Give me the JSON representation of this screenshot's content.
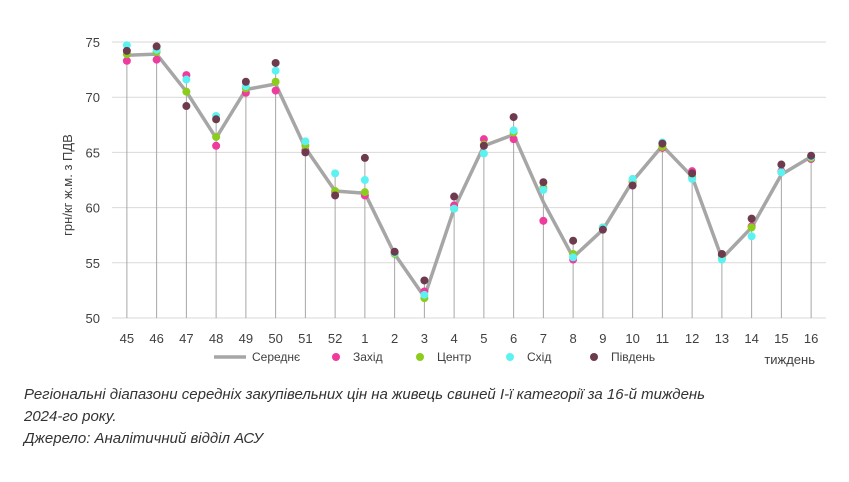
{
  "chart_data": {
    "type": "line",
    "title": "",
    "xlabel": "тиждень",
    "ylabel": "грн/кг ж.м. з ПДВ",
    "ylim": [
      50,
      75
    ],
    "yticks": [
      50,
      55,
      60,
      65,
      70,
      75
    ],
    "grid": true,
    "legend": "bottom",
    "categories": [
      "45",
      "46",
      "47",
      "48",
      "49",
      "50",
      "51",
      "52",
      "1",
      "2",
      "3",
      "4",
      "5",
      "6",
      "7",
      "8",
      "9",
      "10",
      "11",
      "12",
      "13",
      "14",
      "15",
      "16"
    ],
    "series": [
      {
        "name": "Середнє",
        "kind": "line",
        "color": "#a6a6a6",
        "values": [
          73.8,
          73.9,
          70.5,
          66.3,
          70.7,
          71.2,
          65.4,
          61.5,
          61.3,
          55.8,
          51.9,
          59.9,
          65.6,
          66.6,
          60.5,
          55.5,
          58.0,
          62.4,
          65.6,
          62.8,
          55.4,
          58.2,
          63.0,
          64.6
        ]
      },
      {
        "name": "Захід",
        "kind": "marker",
        "color": "#ef3a9e",
        "values": [
          73.3,
          73.4,
          72.0,
          65.6,
          70.4,
          70.6,
          65.2,
          61.4,
          61.1,
          55.9,
          52.4,
          60.2,
          66.2,
          66.2,
          58.8,
          55.3,
          58.1,
          62.3,
          65.4,
          63.3,
          55.7,
          58.3,
          63.3,
          64.4
        ]
      },
      {
        "name": "Центр",
        "kind": "marker",
        "color": "#8ccc1c",
        "values": [
          73.9,
          74.1,
          70.5,
          66.4,
          70.8,
          71.4,
          65.6,
          61.5,
          61.4,
          55.8,
          51.8,
          59.9,
          65.7,
          66.8,
          61.8,
          55.8,
          58.2,
          62.4,
          65.5,
          62.8,
          55.4,
          58.2,
          63.2,
          64.5
        ]
      },
      {
        "name": "Схід",
        "kind": "marker",
        "color": "#5df2f2",
        "values": [
          74.7,
          74.3,
          71.6,
          68.3,
          71.0,
          72.4,
          66.0,
          63.1,
          62.5,
          55.9,
          52.1,
          59.9,
          64.9,
          67.0,
          61.6,
          55.5,
          58.2,
          62.6,
          65.9,
          62.6,
          55.3,
          57.4,
          63.2,
          64.6
        ]
      },
      {
        "name": "Південь",
        "kind": "marker",
        "color": "#6e3a4e",
        "values": [
          74.2,
          74.6,
          69.2,
          68.0,
          71.4,
          73.1,
          65.0,
          61.1,
          64.5,
          56.0,
          53.4,
          61.0,
          65.6,
          68.2,
          62.3,
          57.0,
          58.0,
          62.0,
          65.8,
          63.1,
          55.8,
          59.0,
          63.9,
          64.7
        ]
      }
    ]
  },
  "caption": {
    "line1": "Регіональні діапазони середніх закупівельних цін на живець свиней І-ї категорії за 16-й тиждень",
    "line2": "2024-го року.",
    "source": "Джерело: Аналітичний відділ АСУ"
  }
}
